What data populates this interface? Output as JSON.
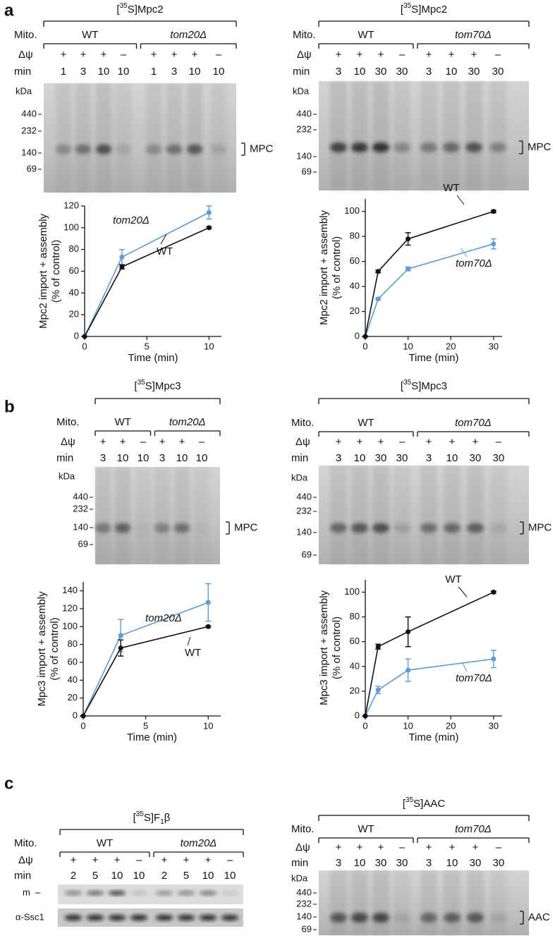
{
  "panel_labels": [
    "a",
    "b",
    "c"
  ],
  "gels": [
    {
      "title": [
        {
          "text": "["
        },
        {
          "text": "35",
          "style": "sup"
        },
        {
          "text": "S]Mpc2"
        }
      ],
      "mito": "Mito.",
      "psi_label": "Δψ",
      "min_label": "min",
      "groups": [
        "WT",
        "tom20Δ"
      ],
      "psi": [
        "+",
        "+",
        "+",
        "–",
        "+",
        "+",
        "+",
        "–"
      ],
      "min": [
        1,
        3,
        10,
        10,
        1,
        3,
        10,
        10
      ],
      "kda": "kDa",
      "markers": [
        440,
        232,
        140,
        69
      ],
      "band": "MPC"
    },
    {
      "title": [
        {
          "text": "["
        },
        {
          "text": "35",
          "style": "sup"
        },
        {
          "text": "S]Mpc2"
        }
      ],
      "mito": "Mito.",
      "psi_label": "Δψ",
      "min_label": "min",
      "groups": [
        "WT",
        "tom70Δ"
      ],
      "psi": [
        "+",
        "+",
        "+",
        "–",
        "+",
        "+",
        "+",
        "–"
      ],
      "min": [
        3,
        10,
        30,
        30,
        3,
        10,
        30,
        30
      ],
      "kda": "kDa",
      "markers": [
        440,
        232,
        140,
        69
      ],
      "band": "MPC"
    },
    {
      "title": [
        {
          "text": "["
        },
        {
          "text": "35",
          "style": "sup"
        },
        {
          "text": "S]Mpc3"
        }
      ],
      "mito": "Mito.",
      "psi_label": "Δψ",
      "min_label": "min",
      "groups": [
        "WT",
        "tom20Δ"
      ],
      "psi": [
        "+",
        "+",
        "–",
        "+",
        "+",
        "–"
      ],
      "min": [
        3,
        10,
        10,
        3,
        10,
        10
      ],
      "kda": "kDa",
      "markers": [
        440,
        232,
        140,
        69
      ],
      "band": "MPC"
    },
    {
      "title": [
        {
          "text": "["
        },
        {
          "text": "35",
          "style": "sup"
        },
        {
          "text": "S]Mpc3"
        }
      ],
      "mito": "Mito.",
      "psi_label": "Δψ",
      "min_label": "min",
      "groups": [
        "WT",
        "tom70Δ"
      ],
      "psi": [
        "+",
        "+",
        "+",
        "–",
        "+",
        "+",
        "+",
        "–"
      ],
      "min": [
        3,
        10,
        30,
        30,
        3,
        10,
        30,
        30
      ],
      "kda": "kDa",
      "markers": [
        440,
        232,
        140,
        69
      ],
      "band": "MPC"
    },
    {
      "title": [
        {
          "text": "["
        },
        {
          "text": "35",
          "style": "sup"
        },
        {
          "text": "S]F"
        },
        {
          "text": "1",
          "style": "sub"
        },
        {
          "text": "β"
        }
      ],
      "mito": "Mito.",
      "psi_label": "Δψ",
      "min_label": "min",
      "groups": [
        "WT",
        "tom20Δ"
      ],
      "psi": [
        "+",
        "+",
        "+",
        "–",
        "+",
        "+",
        "+",
        "–"
      ],
      "min": [
        2,
        5,
        10,
        10,
        2,
        5,
        10,
        10
      ],
      "strips": [
        "m",
        "α-Ssc1"
      ]
    },
    {
      "title": [
        {
          "text": "["
        },
        {
          "text": "35",
          "style": "sup"
        },
        {
          "text": "S]AAC"
        }
      ],
      "mito": "Mito.",
      "psi_label": "Δψ",
      "min_label": "min",
      "groups": [
        "WT",
        "tom70Δ"
      ],
      "psi": [
        "+",
        "+",
        "+",
        "–",
        "+",
        "+",
        "+",
        "–"
      ],
      "min": [
        3,
        10,
        30,
        30,
        3,
        10,
        30,
        30
      ],
      "kda": "kDa",
      "markers": [
        440,
        232,
        140,
        69
      ],
      "band": "AAC"
    }
  ],
  "chart_data": [
    {
      "type": "line",
      "x": [
        0,
        3,
        10
      ],
      "xlim": [
        0,
        11
      ],
      "xticks": [
        0,
        5,
        10
      ],
      "ylim": [
        0,
        120
      ],
      "yticks": [
        0,
        20,
        40,
        60,
        80,
        100,
        120
      ],
      "xlabel": "Time (min)",
      "ylabel": [
        "Mpc2 import + assembly",
        "(% of control)"
      ],
      "series": [
        {
          "name": "WT",
          "color": "#111111",
          "values": [
            0,
            64,
            100
          ],
          "errors": [
            0,
            2,
            1
          ]
        },
        {
          "name": "tom20Δ",
          "color": "#5e9bd6",
          "values": [
            0,
            73,
            114
          ],
          "errors": [
            0,
            7,
            6
          ]
        }
      ]
    },
    {
      "type": "line",
      "x": [
        0,
        3,
        10,
        30
      ],
      "xlim": [
        0,
        32
      ],
      "xticks": [
        0,
        10,
        20,
        30
      ],
      "ylim": [
        0,
        110
      ],
      "yticks": [
        0,
        20,
        40,
        60,
        80,
        100
      ],
      "xlabel": "Time (min)",
      "ylabel": [
        "Mpc2 import + assembly",
        "(% of control)"
      ],
      "series": [
        {
          "name": "WT",
          "color": "#111111",
          "values": [
            0,
            52,
            78,
            100
          ],
          "errors": [
            0,
            1,
            5,
            1
          ]
        },
        {
          "name": "tom70Δ",
          "color": "#5e9bd6",
          "values": [
            0,
            30,
            54,
            74
          ],
          "errors": [
            0,
            1,
            1.5,
            4
          ]
        }
      ]
    },
    {
      "type": "line",
      "x": [
        0,
        3,
        10
      ],
      "xlim": [
        0,
        11
      ],
      "xticks": [
        0,
        5,
        10
      ],
      "ylim": [
        0,
        150
      ],
      "yticks": [
        0,
        20,
        40,
        60,
        80,
        100,
        120,
        140
      ],
      "xlabel": "Time (min)",
      "ylabel": [
        "Mpc3 import + assembly",
        "(% of control)"
      ],
      "series": [
        {
          "name": "WT",
          "color": "#111111",
          "values": [
            0,
            76,
            100
          ],
          "errors": [
            0,
            9,
            1
          ]
        },
        {
          "name": "tom20Δ",
          "color": "#5e9bd6",
          "values": [
            0,
            90,
            127
          ],
          "errors": [
            0,
            18,
            21
          ]
        }
      ]
    },
    {
      "type": "line",
      "x": [
        0,
        3,
        10,
        30
      ],
      "xlim": [
        0,
        32
      ],
      "xticks": [
        0,
        10,
        20,
        30
      ],
      "ylim": [
        0,
        110
      ],
      "yticks": [
        0,
        20,
        40,
        60,
        80,
        100
      ],
      "xlabel": "Time (min)",
      "ylabel": [
        "Mpc3 import + assembly",
        "(% of control)"
      ],
      "series": [
        {
          "name": "WT",
          "color": "#111111",
          "values": [
            0,
            56,
            68,
            100
          ],
          "errors": [
            0,
            2,
            12,
            1
          ]
        },
        {
          "name": "tom70Δ",
          "color": "#5e9bd6",
          "values": [
            0,
            21,
            37,
            46
          ],
          "errors": [
            0,
            3,
            9,
            7
          ]
        }
      ]
    }
  ]
}
